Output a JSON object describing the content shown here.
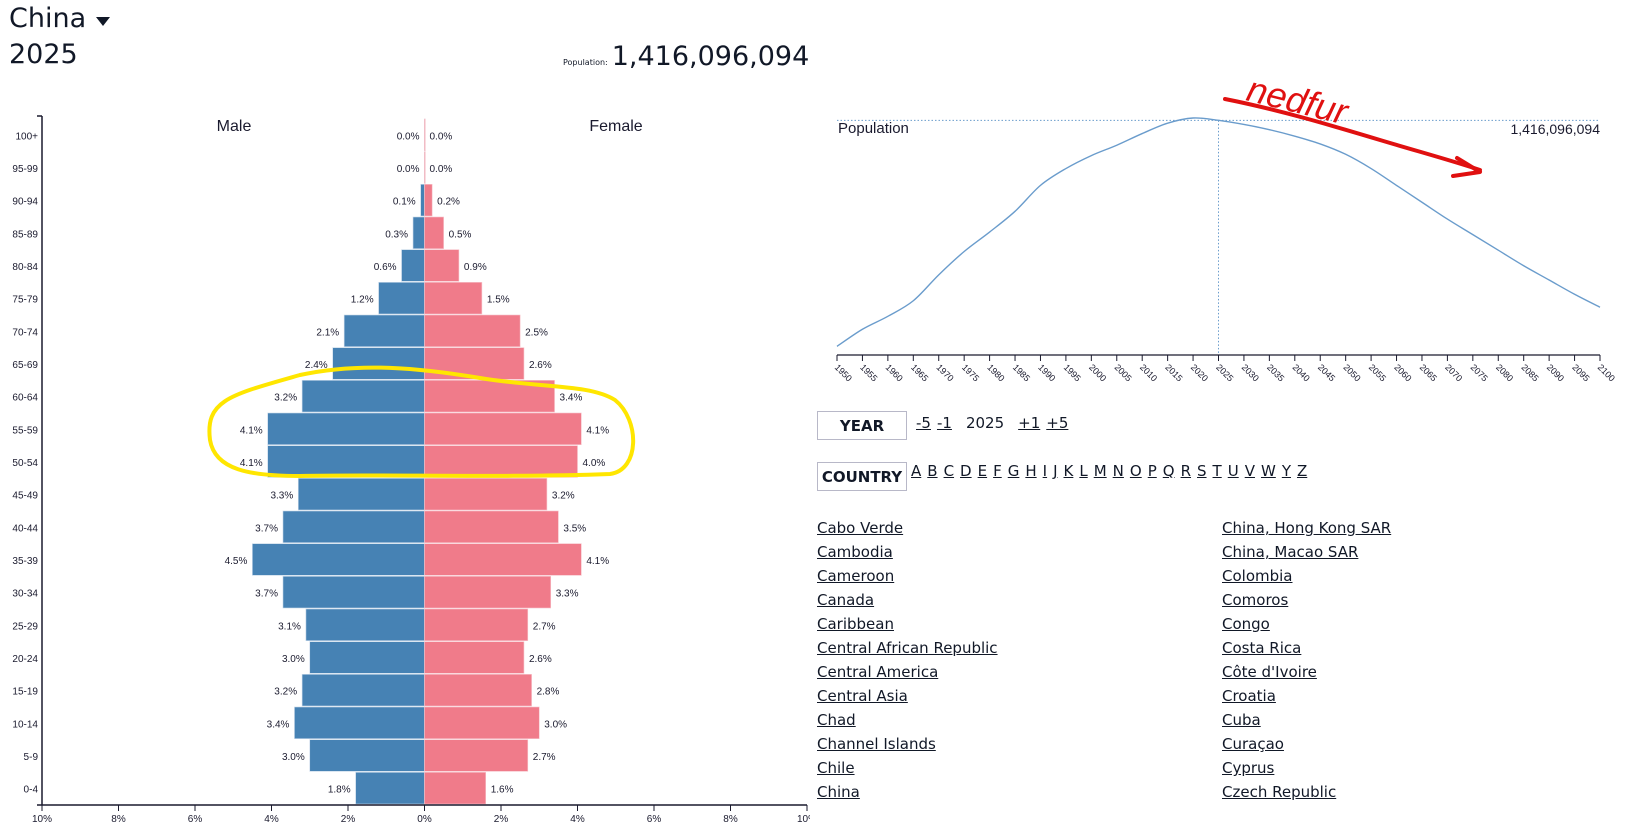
{
  "header": {
    "country": "China",
    "year": "2025",
    "population_label": "Population:",
    "population_value": "1,416,096,094"
  },
  "colors": {
    "male": "#4682b4",
    "female": "#f07b8a",
    "line": "#6a9ccc",
    "axis": "#1a1a2e",
    "annotation_highlight": "#ffe600",
    "annotation_arrow": "#e01010"
  },
  "annotations": {
    "handwritten_text": "nedfur"
  },
  "chart_data": [
    {
      "type": "bar",
      "subtype": "population-pyramid",
      "title": "",
      "series_labels": {
        "male": "Male",
        "female": "Female"
      },
      "categories": [
        "100+",
        "95-99",
        "90-94",
        "85-89",
        "80-84",
        "75-79",
        "70-74",
        "65-69",
        "60-64",
        "55-59",
        "50-54",
        "45-49",
        "40-44",
        "35-39",
        "30-34",
        "25-29",
        "20-24",
        "15-19",
        "10-14",
        "5-9",
        "0-4"
      ],
      "series": [
        {
          "name": "Male",
          "values": [
            0.0,
            0.0,
            0.1,
            0.3,
            0.6,
            1.2,
            2.1,
            2.4,
            3.2,
            4.1,
            4.1,
            3.3,
            3.7,
            4.5,
            3.7,
            3.1,
            3.0,
            3.2,
            3.4,
            3.0,
            1.8
          ]
        },
        {
          "name": "Female",
          "values": [
            0.0,
            0.0,
            0.2,
            0.5,
            0.9,
            1.5,
            2.5,
            2.6,
            3.4,
            4.1,
            4.0,
            3.2,
            3.5,
            4.1,
            3.3,
            2.7,
            2.6,
            2.8,
            3.0,
            2.7,
            1.6
          ]
        }
      ],
      "value_suffix": "%",
      "xlim": [
        -10,
        10
      ],
      "xticks": [
        "10%",
        "8%",
        "6%",
        "4%",
        "2%",
        "0%",
        "2%",
        "4%",
        "6%",
        "8%",
        "10%"
      ],
      "highlighted_categories": [
        "60-64",
        "55-59",
        "50-54"
      ]
    },
    {
      "type": "line",
      "title": "Population",
      "current_year": 2025,
      "current_value_label": "1,416,096,094",
      "x": [
        1950,
        1955,
        1960,
        1965,
        1970,
        1975,
        1980,
        1985,
        1990,
        1995,
        2000,
        2005,
        2010,
        2015,
        2020,
        2025,
        2030,
        2035,
        2040,
        2045,
        2050,
        2055,
        2060,
        2065,
        2070,
        2075,
        2080,
        2085,
        2090,
        2095,
        2100
      ],
      "values": [
        544,
        610,
        660,
        720,
        820,
        910,
        985,
        1065,
        1165,
        1230,
        1280,
        1320,
        1365,
        1405,
        1425,
        1416,
        1400,
        1380,
        1355,
        1325,
        1285,
        1230,
        1165,
        1100,
        1035,
        975,
        915,
        855,
        800,
        745,
        695
      ],
      "value_unit": "millions (approx.)",
      "xlim": [
        1950,
        2100
      ],
      "xticks": [
        "1950",
        "1955",
        "1960",
        "1965",
        "1970",
        "1975",
        "1980",
        "1985",
        "1990",
        "1995",
        "2000",
        "2005",
        "2010",
        "2015",
        "2020",
        "2025",
        "2030",
        "2035",
        "2040",
        "2045",
        "2050",
        "2055",
        "2060",
        "2065",
        "2070",
        "2075",
        "2080",
        "2085",
        "2090",
        "2095",
        "2100"
      ]
    }
  ],
  "controls": {
    "year_label": "YEAR",
    "year_nav": [
      "-5",
      "-1",
      "+1",
      "+5"
    ],
    "year_current": "2025",
    "country_label": "COUNTRY",
    "letters": [
      "A",
      "B",
      "C",
      "D",
      "E",
      "F",
      "G",
      "H",
      "I",
      "J",
      "K",
      "L",
      "M",
      "N",
      "O",
      "P",
      "Q",
      "R",
      "S",
      "T",
      "U",
      "V",
      "W",
      "Y",
      "Z"
    ]
  },
  "countries_col1": [
    "Cabo Verde",
    "Cambodia",
    "Cameroon",
    "Canada",
    "Caribbean",
    "Central African Republic",
    "Central America",
    "Central Asia",
    "Chad",
    "Channel Islands",
    "Chile",
    "China"
  ],
  "countries_col2": [
    "China, Hong Kong SAR",
    "China, Macao SAR",
    "Colombia",
    "Comoros",
    "Congo",
    "Costa Rica",
    "Côte d'Ivoire",
    "Croatia",
    "Cuba",
    "Curaçao",
    "Cyprus",
    "Czech Republic"
  ]
}
